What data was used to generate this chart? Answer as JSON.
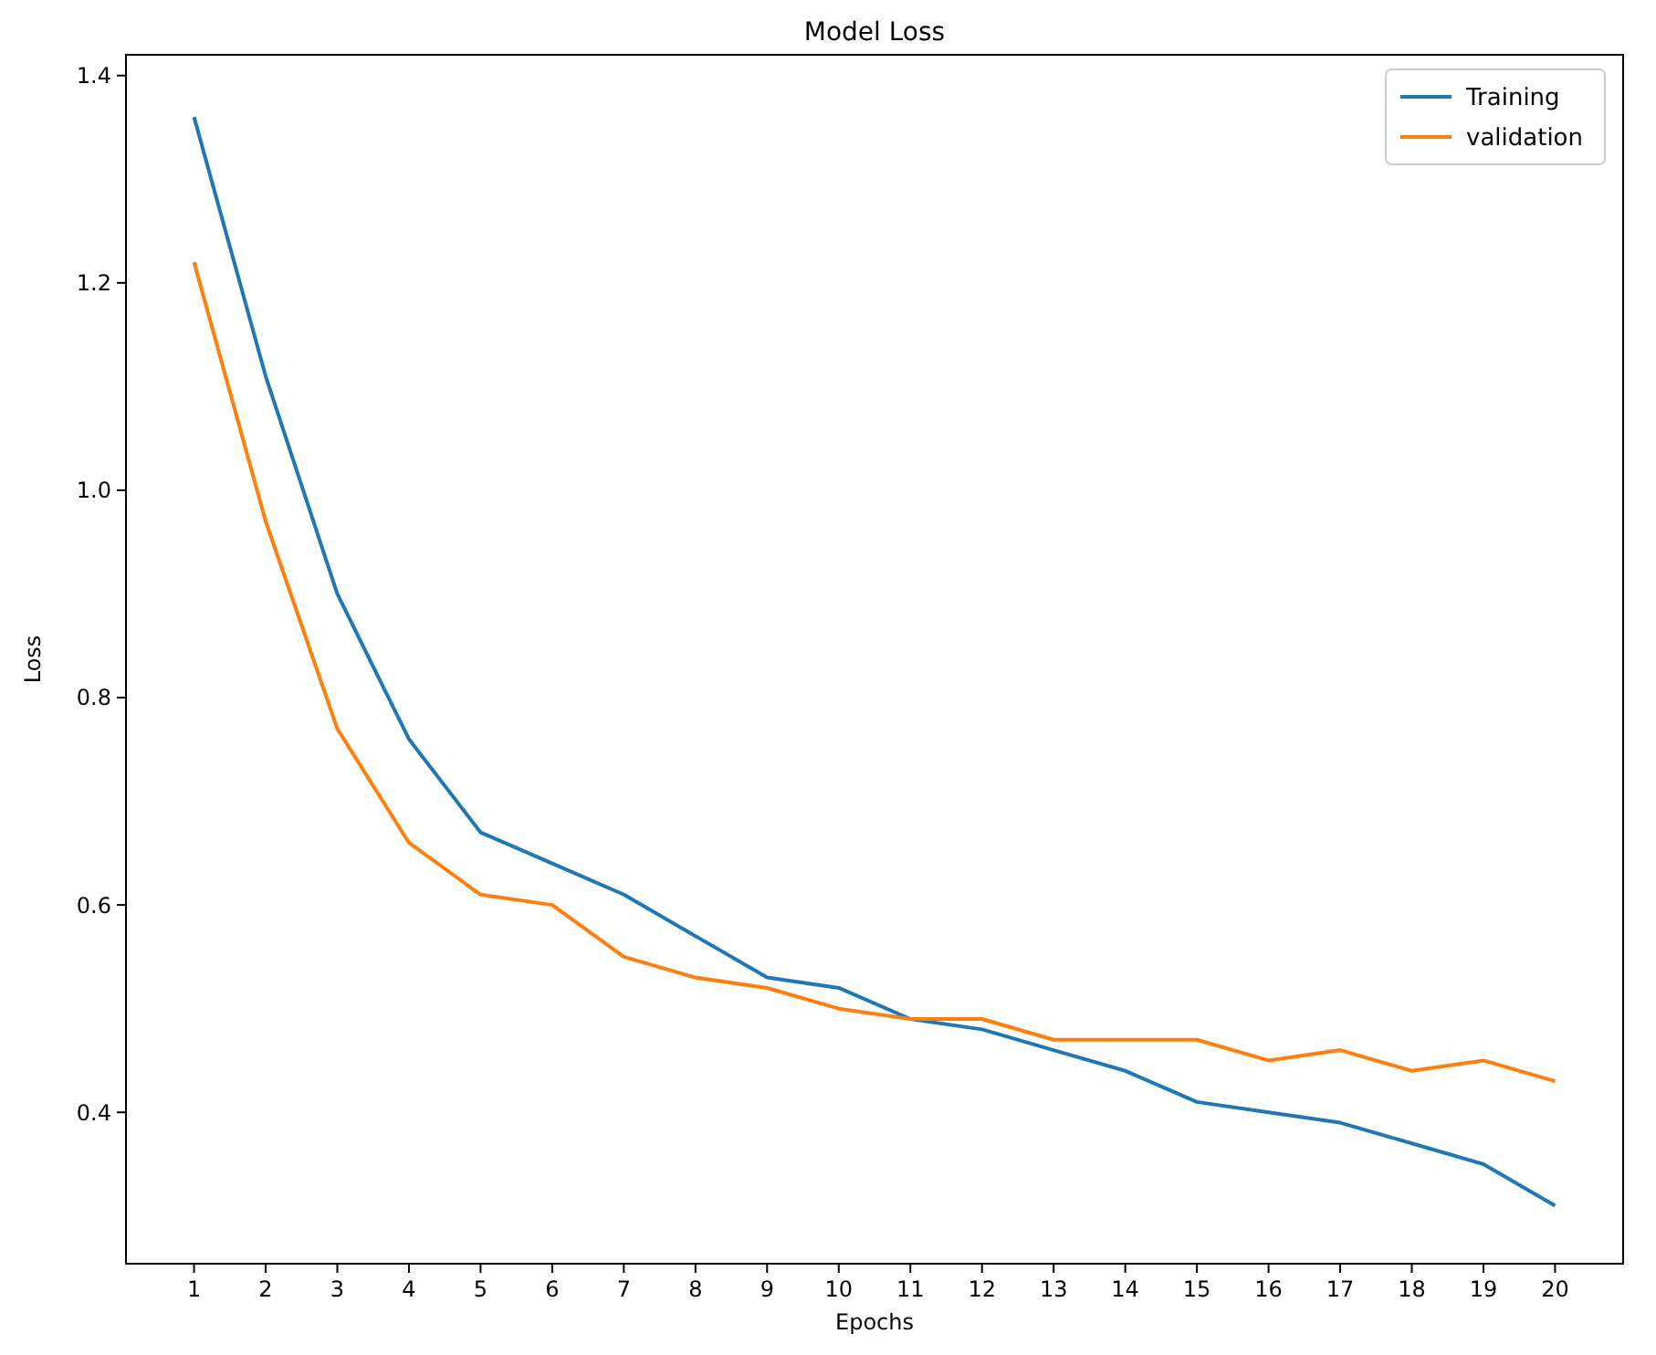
{
  "chart_data": {
    "type": "line",
    "title": "Model Loss",
    "xlabel": "Epochs",
    "ylabel": "Loss",
    "x": [
      1,
      2,
      3,
      4,
      5,
      6,
      7,
      8,
      9,
      10,
      11,
      12,
      13,
      14,
      15,
      16,
      17,
      18,
      19,
      20
    ],
    "series": [
      {
        "name": "Training",
        "color": "#1f77b4",
        "values": [
          1.36,
          1.11,
          0.9,
          0.76,
          0.67,
          0.64,
          0.61,
          0.57,
          0.53,
          0.52,
          0.49,
          0.48,
          0.46,
          0.44,
          0.41,
          0.4,
          0.39,
          0.37,
          0.35,
          0.31
        ]
      },
      {
        "name": "validation",
        "color": "#ff7f0e",
        "values": [
          1.22,
          0.97,
          0.77,
          0.66,
          0.61,
          0.6,
          0.55,
          0.53,
          0.52,
          0.5,
          0.49,
          0.49,
          0.47,
          0.47,
          0.47,
          0.45,
          0.46,
          0.44,
          0.45,
          0.43
        ]
      }
    ],
    "xlim": [
      0.05,
      20.95
    ],
    "ylim": [
      0.254,
      1.42
    ],
    "xticks": [
      1,
      2,
      3,
      4,
      5,
      6,
      7,
      8,
      9,
      10,
      11,
      12,
      13,
      14,
      15,
      16,
      17,
      18,
      19,
      20
    ],
    "yticks": [
      {
        "value": 0.4,
        "label": "0.4"
      },
      {
        "value": 0.6,
        "label": "0.6"
      },
      {
        "value": 0.8,
        "label": "0.8"
      },
      {
        "value": 1.0,
        "label": "1.0"
      },
      {
        "value": 1.2,
        "label": "1.2"
      },
      {
        "value": 1.4,
        "label": "1.4"
      }
    ],
    "legend": "top right",
    "grid": false,
    "line_style": "solid",
    "marker": "none"
  }
}
